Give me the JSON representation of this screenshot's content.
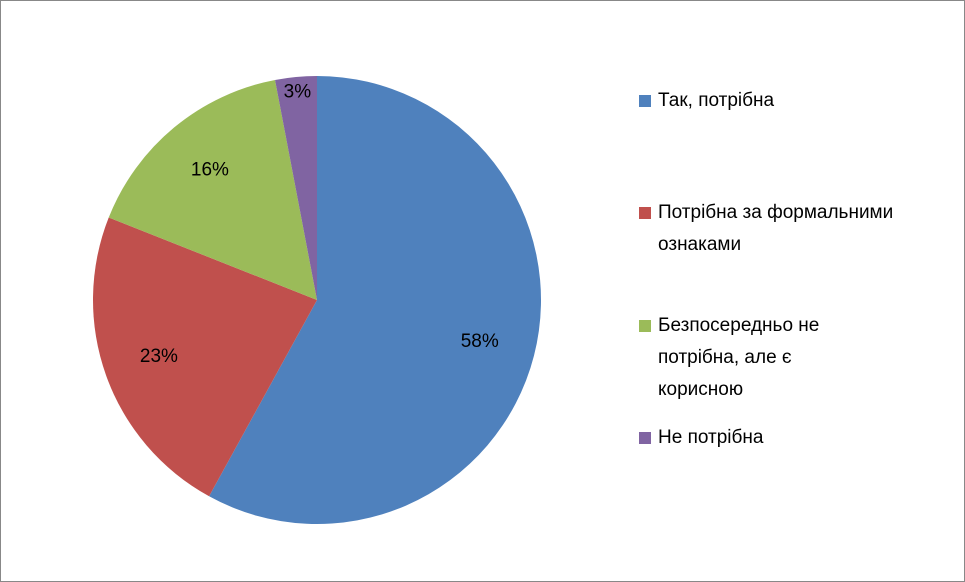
{
  "chart_data": {
    "type": "pie",
    "categories": [
      "Так, потрібна",
      "Потрібна за формальними ознаками",
      "Безпосередньо не потрібна, але є корисною",
      "Не потрібна"
    ],
    "values": [
      58,
      23,
      16,
      3
    ],
    "value_labels": [
      "58%",
      "23%",
      "16%",
      "3%"
    ],
    "colors": [
      "#4f81bd",
      "#c0504d",
      "#9bbb59",
      "#8064a2"
    ],
    "legend": "right"
  }
}
